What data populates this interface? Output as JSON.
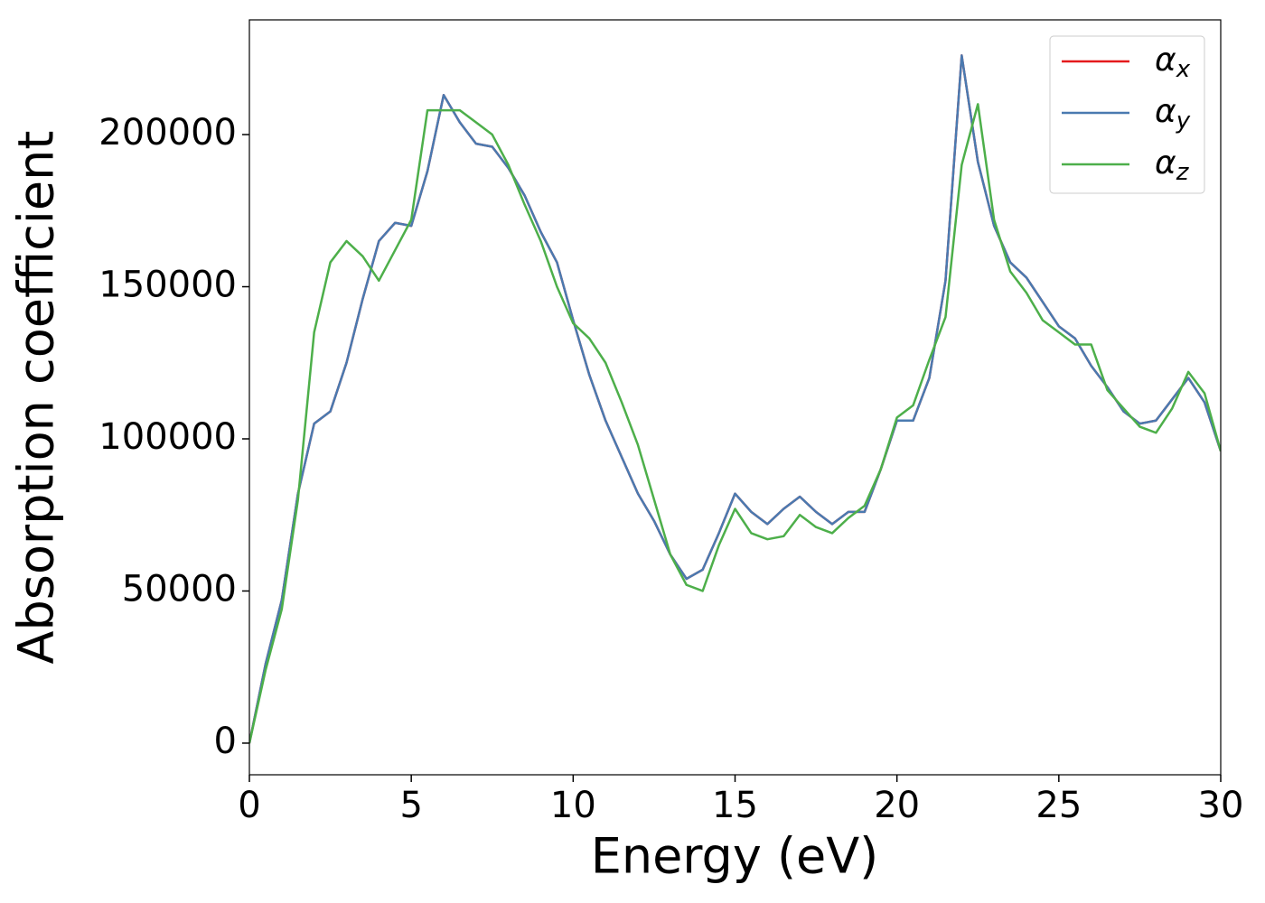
{
  "chart_data": {
    "type": "line",
    "xlabel": "Energy (eV)",
    "ylabel": "Absorption coefficient",
    "x": [
      0,
      0.5,
      1,
      1.5,
      2,
      2.5,
      3,
      3.5,
      4,
      4.5,
      5,
      5.5,
      6,
      6.5,
      7,
      7.5,
      8,
      8.5,
      9,
      9.5,
      10,
      10.5,
      11,
      11.5,
      12,
      12.5,
      13,
      13.5,
      14,
      14.5,
      15,
      15.5,
      16,
      16.5,
      17,
      17.5,
      18,
      18.5,
      19,
      19.5,
      20,
      20.5,
      21,
      21.5,
      22,
      22.5,
      23,
      23.5,
      24,
      24.5,
      25,
      25.5,
      26,
      26.5,
      27,
      27.5,
      28,
      28.5,
      29,
      29.5,
      30
    ],
    "series": [
      {
        "name": "αx",
        "color": "#e41a1c",
        "values": [
          0,
          26000,
          47000,
          82000,
          105000,
          109000,
          125000,
          146000,
          165000,
          171000,
          170000,
          188000,
          213000,
          204000,
          197000,
          196000,
          189000,
          180000,
          168000,
          158000,
          139000,
          121000,
          106000,
          94000,
          82000,
          73000,
          62000,
          54000,
          57000,
          69000,
          82000,
          76000,
          72000,
          77000,
          81000,
          76000,
          72000,
          76000,
          76000,
          90000,
          106000,
          106000,
          120000,
          152000,
          226000,
          191000,
          170000,
          158000,
          153000,
          145000,
          137000,
          133000,
          124000,
          117000,
          109000,
          105000,
          106000,
          113000,
          120000,
          112000,
          96000
        ]
      },
      {
        "name": "αy",
        "color": "#4a7ab0",
        "values": [
          0,
          26000,
          47000,
          82000,
          105000,
          109000,
          125000,
          146000,
          165000,
          171000,
          170000,
          188000,
          213000,
          204000,
          197000,
          196000,
          189000,
          180000,
          168000,
          158000,
          139000,
          121000,
          106000,
          94000,
          82000,
          73000,
          62000,
          54000,
          57000,
          69000,
          82000,
          76000,
          72000,
          77000,
          81000,
          76000,
          72000,
          76000,
          76000,
          90000,
          106000,
          106000,
          120000,
          152000,
          226000,
          191000,
          170000,
          158000,
          153000,
          145000,
          137000,
          133000,
          124000,
          117000,
          109000,
          105000,
          106000,
          113000,
          120000,
          112000,
          96000
        ]
      },
      {
        "name": "αz",
        "color": "#4daf4a",
        "values": [
          0,
          24000,
          44000,
          80000,
          135000,
          158000,
          165000,
          160000,
          152000,
          162000,
          172000,
          208000,
          208000,
          208000,
          204000,
          200000,
          190000,
          177000,
          165000,
          150000,
          138000,
          133000,
          125000,
          112000,
          98000,
          80000,
          62000,
          52000,
          50000,
          65000,
          77000,
          69000,
          67000,
          68000,
          75000,
          71000,
          69000,
          74000,
          78000,
          90000,
          107000,
          111000,
          126000,
          140000,
          190000,
          210000,
          172000,
          155000,
          148000,
          139000,
          135000,
          131000,
          131000,
          116000,
          110000,
          104000,
          102000,
          110000,
          122000,
          115000,
          96000
        ]
      }
    ],
    "xlim": [
      0,
      30
    ],
    "xticks": [
      0,
      5,
      10,
      15,
      20,
      25,
      30
    ],
    "ylim": [
      -10400,
      237700
    ],
    "yticks": [
      0,
      50000,
      100000,
      150000,
      200000
    ],
    "legend": "upper right"
  }
}
